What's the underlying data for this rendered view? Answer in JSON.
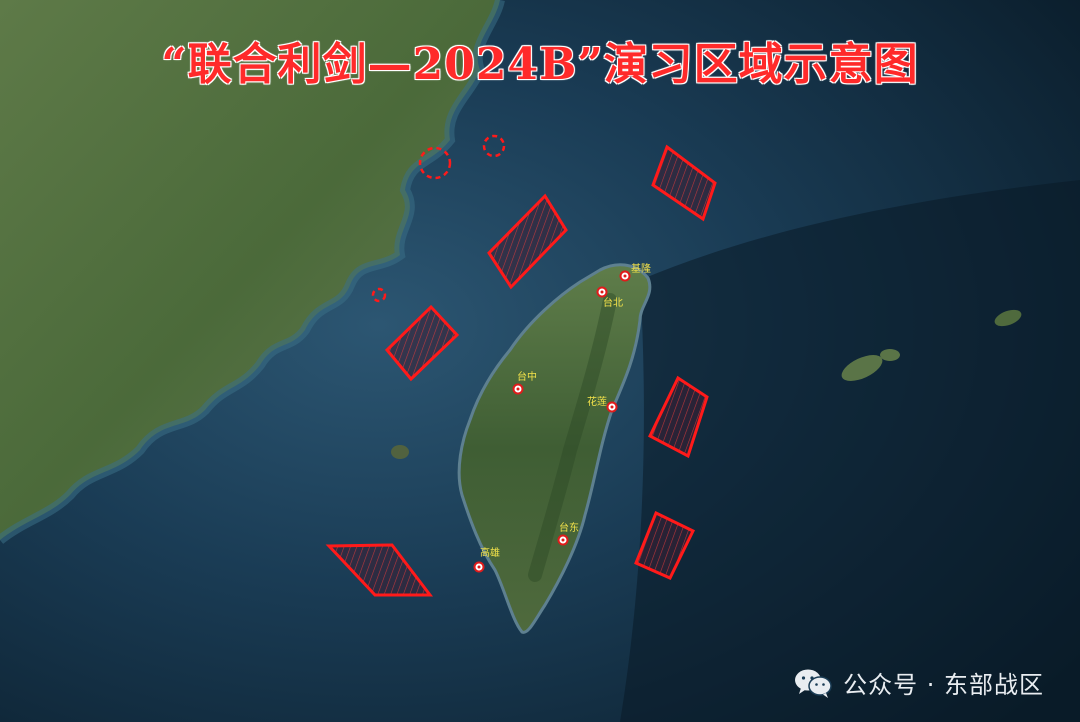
{
  "title": "“联合利剑—2024B”演习区域示意图",
  "cities": [
    {
      "id": "keelung",
      "label": "基隆"
    },
    {
      "id": "taipei",
      "label": "台北"
    },
    {
      "id": "taichung",
      "label": "台中"
    },
    {
      "id": "hualien",
      "label": "花莲"
    },
    {
      "id": "kaohsiung",
      "label": "高雄"
    },
    {
      "id": "taitung",
      "label": "台东"
    }
  ],
  "exercise_zones": {
    "count": 6,
    "color": "#ff1a1a"
  },
  "circle_zones": {
    "count": 3,
    "color": "#ff1a1a"
  },
  "watermark": {
    "icon": "wechat-icon",
    "text": "公众号 · 东部战区"
  },
  "colors": {
    "sea_deep": "#0f2a3d",
    "land_green": "#4d6b3a",
    "zone_red": "#ff1a1a",
    "label_yellow": "#f3e24a"
  }
}
